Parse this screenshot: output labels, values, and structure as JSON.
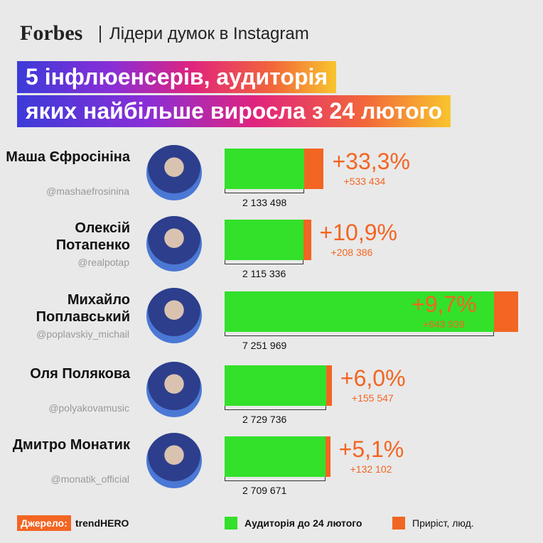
{
  "chart_data": {
    "type": "bar",
    "orientation": "horizontal",
    "stacked": true,
    "brand": "Forbes",
    "subtitle": "Лідери думок в Instagram",
    "title": [
      "5 інфлюенсерів, аудиторія",
      "яких найбільше виросла з 24 лютого"
    ],
    "categories": [
      "Маша Єфросініна",
      "Олексій Потапенко",
      "Михайло Поплавський",
      "Оля Полякова",
      "Дмитро Монатик"
    ],
    "handles": [
      "@mashaefrosinina",
      "@realpotap",
      "@poplavskiy_michail",
      "@polyakovamusic",
      "@monatik_official"
    ],
    "series": [
      {
        "name": "Аудиторія до 24 лютого",
        "color": "#33e02a",
        "values": [
          2133498,
          2115336,
          7251969,
          2729736,
          2709671
        ],
        "value_labels": [
          "2 133 498",
          "2 115 336",
          "7 251 969",
          "2 729 736",
          "2 709 671"
        ]
      },
      {
        "name": "Приріст, люд.",
        "color": "#f26522",
        "values": [
          533434,
          208386,
          643939,
          155547,
          132102
        ],
        "value_labels": [
          "+533 434",
          "+208 386",
          "+643 939",
          "+155 547",
          "+132 102"
        ],
        "percent_labels": [
          "+33,3%",
          "+10,9%",
          "+9,7%",
          "+6,0%",
          "+5,1%"
        ]
      }
    ],
    "source_label": "Джерело:",
    "source": "trendHERO"
  }
}
